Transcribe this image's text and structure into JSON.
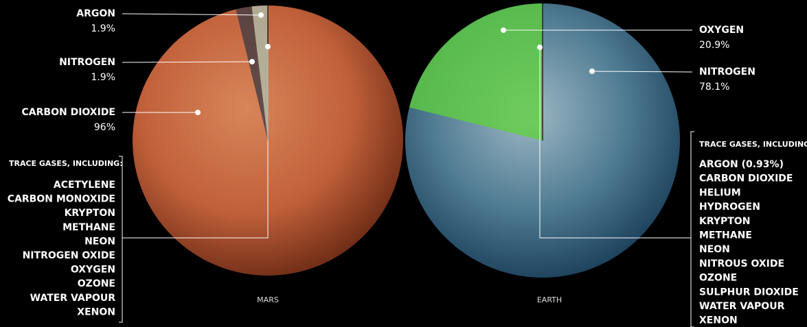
{
  "chart_data": [
    {
      "type": "pie",
      "title": "MARS",
      "categories": [
        "ARGON",
        "NITROGEN",
        "CARBON DIOXIDE"
      ],
      "values": [
        1.9,
        1.9,
        96
      ],
      "value_labels": [
        "1.9%",
        "1.9%",
        "96%"
      ],
      "colors": [
        "#a9c2b2",
        "#3a3a44",
        "transparent"
      ],
      "trace_title": "TRACE GASES, INCLUDING:",
      "trace_gases": [
        "ACETYLENE",
        "CARBON MONOXIDE",
        "KRYPTON",
        "METHANE",
        "NEON",
        "NITROGEN OXIDE",
        "OXYGEN",
        "OZONE",
        "WATER VAPOUR",
        "XENON"
      ]
    },
    {
      "type": "pie",
      "title": "EARTH",
      "categories": [
        "OXYGEN",
        "NITROGEN"
      ],
      "values": [
        20.9,
        78.1
      ],
      "value_labels": [
        "20.9%",
        "78.1%"
      ],
      "colors": [
        "#5fd13a",
        "transparent"
      ],
      "trace_title": "TRACE GASES, INCLUDING:",
      "trace_gases": [
        "ARGON (0.93%)",
        "CARBON DIOXIDE",
        "HELIUM",
        "HYDROGEN",
        "KRYPTON",
        "METHANE",
        "NEON",
        "NITROUS OXIDE",
        "OZONE",
        "SULPHUR DIOXIDE",
        "WATER VAPOUR",
        "XENON"
      ]
    }
  ]
}
